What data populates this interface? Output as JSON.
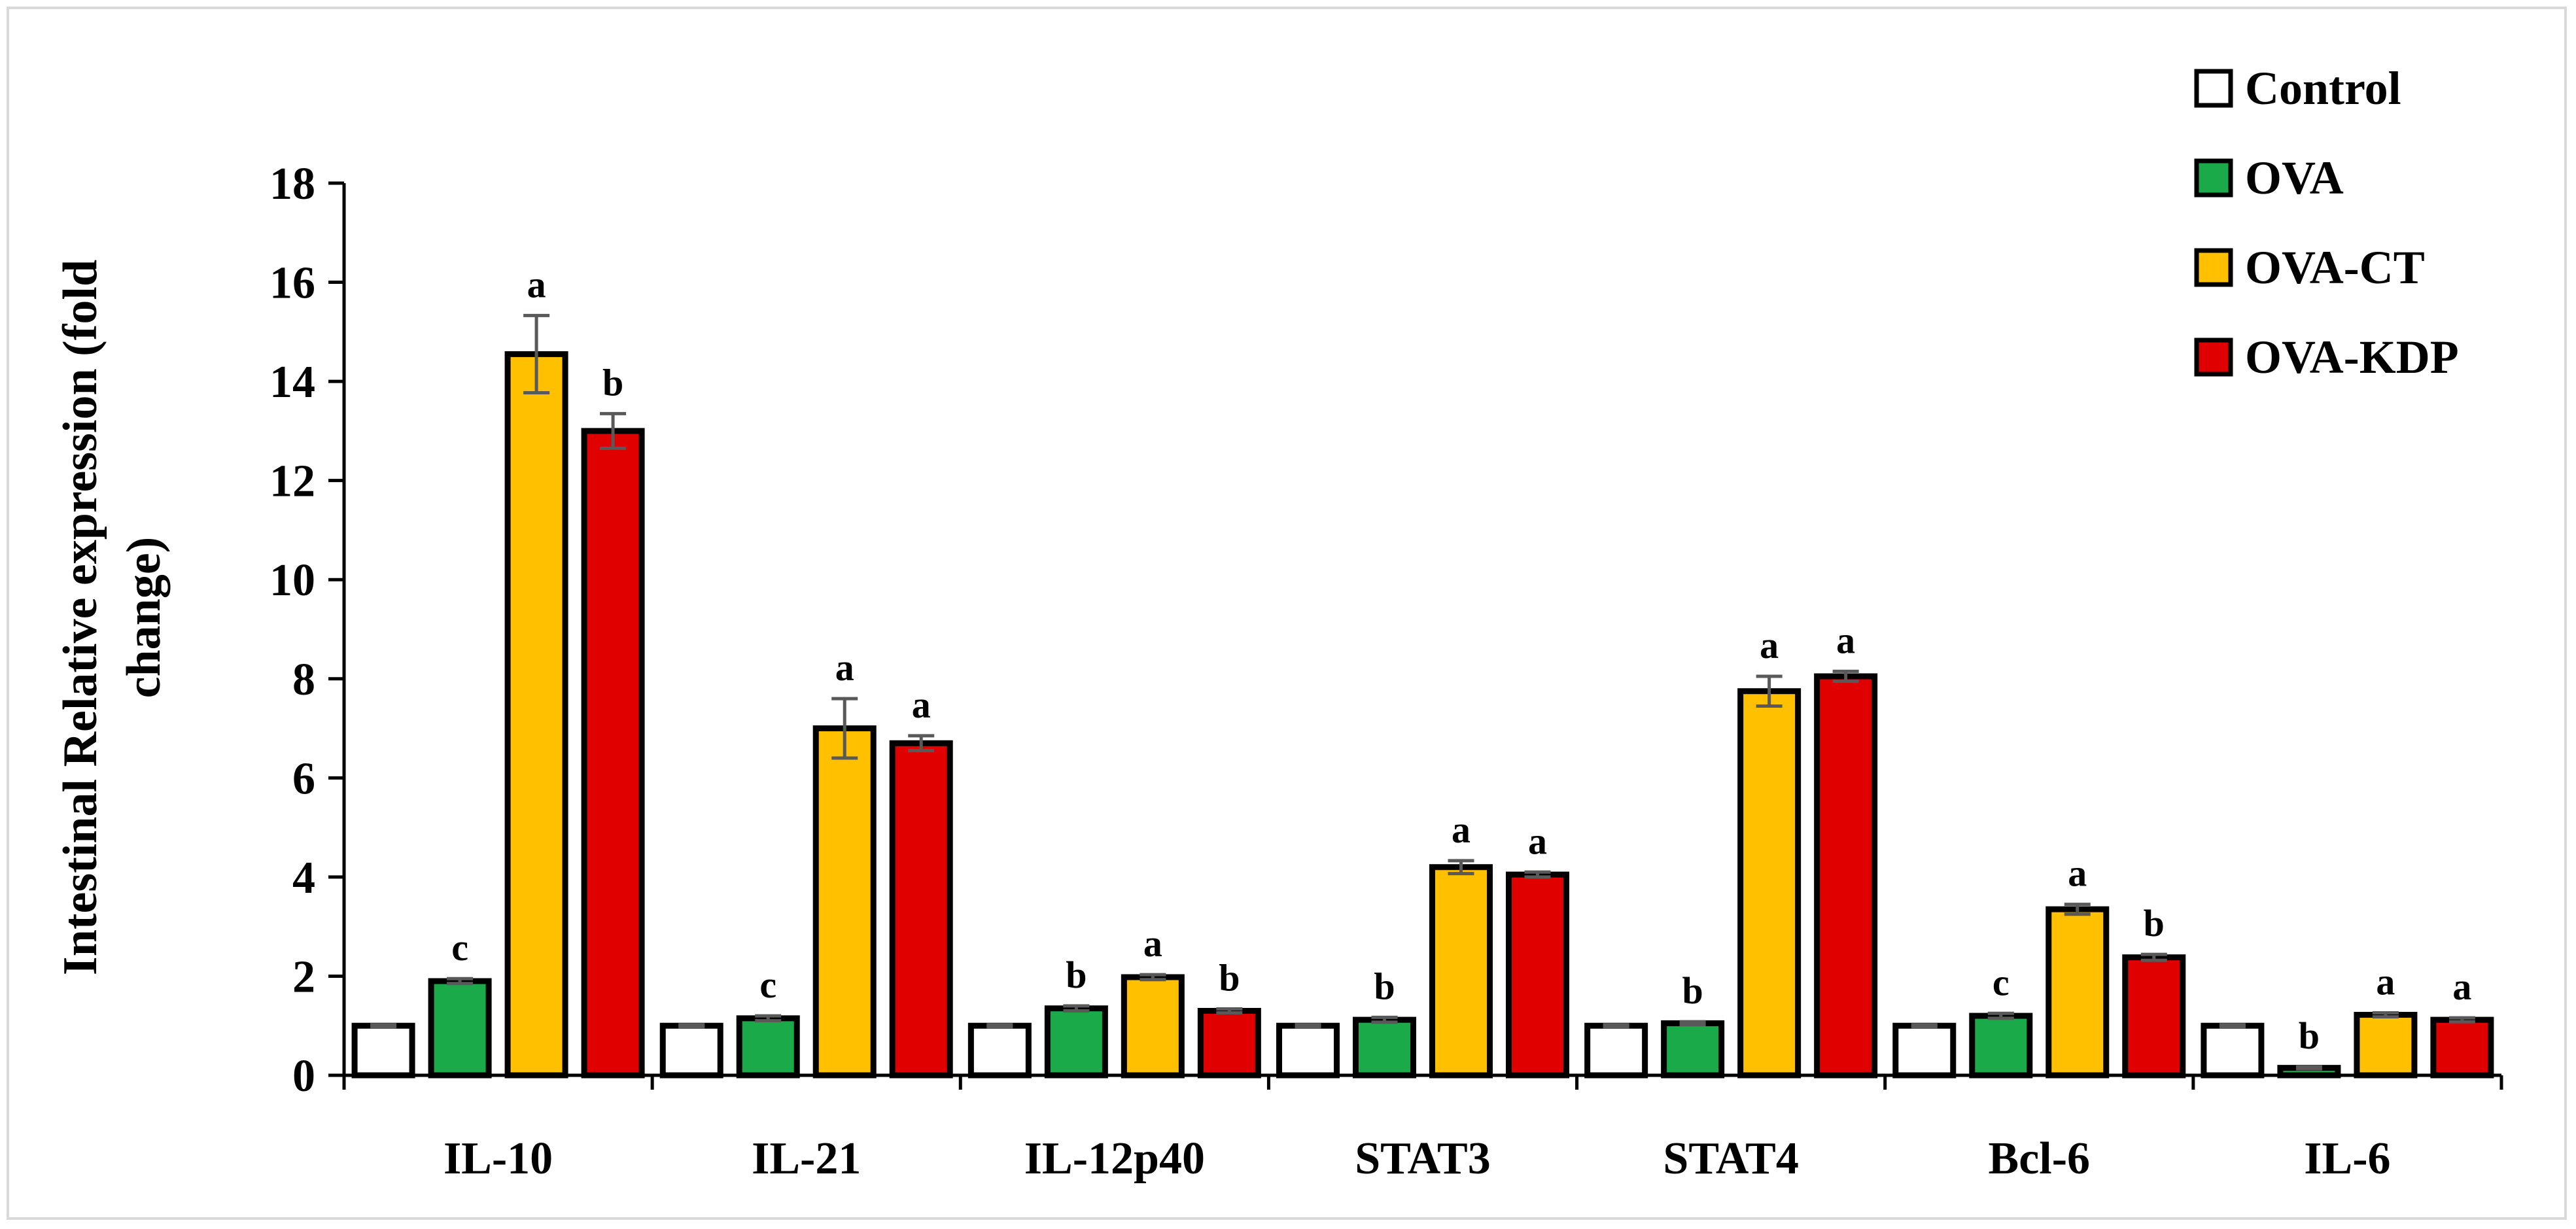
{
  "chart_data": {
    "type": "bar",
    "title": "",
    "xlabel": "",
    "ylabel": "Intestinal Relative expression (fold change)",
    "ylabel_lines": [
      "Intestinal Relative expression (fold",
      "change)"
    ],
    "ylim": [
      0,
      18
    ],
    "yticks": [
      0,
      2,
      4,
      6,
      8,
      10,
      12,
      14,
      16,
      18
    ],
    "grid": false,
    "legend_position": "top-right",
    "categories": [
      "IL-10",
      "IL-21",
      "IL-12p40",
      "STAT3",
      "STAT4",
      "Bcl-6",
      "IL-6"
    ],
    "series": [
      {
        "name": "Control",
        "color": "#ffffff",
        "values": [
          1.0,
          1.0,
          1.0,
          1.0,
          1.0,
          1.0,
          1.0
        ],
        "errors": [
          0.02,
          0.02,
          0.02,
          0.02,
          0.02,
          0.02,
          0.02
        ],
        "labels": [
          "",
          "",
          "",
          "",
          "",
          "",
          ""
        ]
      },
      {
        "name": "OVA",
        "color": "#1aaa4a",
        "values": [
          1.9,
          1.15,
          1.35,
          1.12,
          1.05,
          1.2,
          0.15
        ],
        "errors": [
          0.05,
          0.05,
          0.05,
          0.05,
          0.03,
          0.05,
          0.02
        ],
        "labels": [
          "c",
          "c",
          "b",
          "b",
          "b",
          "c",
          "b"
        ]
      },
      {
        "name": "OVA-CT",
        "color": "#ffc000",
        "values": [
          14.55,
          7.0,
          1.98,
          4.2,
          7.75,
          3.35,
          1.22
        ],
        "errors": [
          0.78,
          0.6,
          0.05,
          0.13,
          0.3,
          0.1,
          0.04
        ],
        "labels": [
          "a",
          "a",
          "a",
          "a",
          "a",
          "a",
          "a"
        ]
      },
      {
        "name": "OVA-KDP",
        "color": "#e00000",
        "values": [
          13.0,
          6.7,
          1.3,
          4.05,
          8.05,
          2.38,
          1.12
        ],
        "errors": [
          0.35,
          0.15,
          0.04,
          0.05,
          0.1,
          0.06,
          0.04
        ],
        "labels": [
          "b",
          "a",
          "b",
          "a",
          "a",
          "b",
          "a"
        ]
      }
    ]
  }
}
